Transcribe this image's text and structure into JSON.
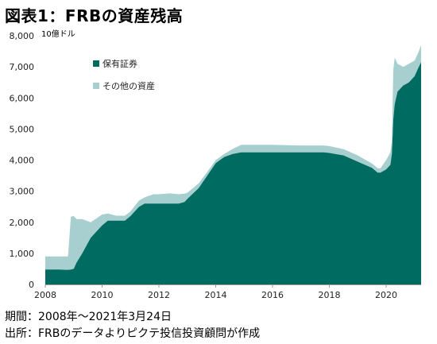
{
  "title": "図表1：FRBの資産残高",
  "footer": {
    "period": "期間：2008年～2021年3月24日",
    "source": "出所：FRBのデータよりピクテ投信投資顧問が作成"
  },
  "chart_data": {
    "type": "area",
    "stacked": true,
    "unit_label": "10億ドル",
    "x": [
      2008.0,
      2008.5,
      2008.7,
      2008.8,
      2008.9,
      2009.0,
      2009.1,
      2009.3,
      2009.6,
      2010.0,
      2010.2,
      2010.5,
      2010.8,
      2011.0,
      2011.3,
      2011.5,
      2011.8,
      2012.0,
      2012.4,
      2012.7,
      2012.9,
      2013.0,
      2013.4,
      2013.7,
      2014.0,
      2014.3,
      2014.6,
      2014.9,
      2015.0,
      2016.0,
      2017.0,
      2017.5,
      2017.8,
      2018.0,
      2018.5,
      2019.0,
      2019.5,
      2019.7,
      2019.8,
      2020.0,
      2020.15,
      2020.2,
      2020.25,
      2020.3,
      2020.4,
      2020.6,
      2020.8,
      2021.0,
      2021.15,
      2021.23
    ],
    "series": [
      {
        "name": "保有証券",
        "color": "#006b60",
        "values": [
          480,
          480,
          470,
          470,
          480,
          500,
          700,
          1000,
          1500,
          1900,
          2050,
          2050,
          2050,
          2200,
          2500,
          2600,
          2600,
          2600,
          2600,
          2600,
          2650,
          2750,
          3100,
          3500,
          3900,
          4100,
          4200,
          4250,
          4250,
          4250,
          4250,
          4250,
          4250,
          4230,
          4150,
          3950,
          3750,
          3600,
          3600,
          3700,
          3850,
          4200,
          5300,
          5800,
          6200,
          6400,
          6500,
          6700,
          7000,
          7150
        ]
      },
      {
        "name": "その他の資産",
        "color": "#a8cfcf",
        "values": [
          420,
          420,
          430,
          430,
          1700,
          1700,
          1400,
          1100,
          500,
          350,
          230,
          160,
          160,
          150,
          200,
          200,
          300,
          300,
          330,
          300,
          270,
          200,
          150,
          120,
          100,
          100,
          160,
          240,
          240,
          240,
          220,
          220,
          220,
          220,
          200,
          200,
          140,
          140,
          140,
          300,
          400,
          400,
          1600,
          1500,
          900,
          600,
          600,
          500,
          500,
          550
        ]
      }
    ],
    "xlim": [
      2008,
      2021.23
    ],
    "ylim": [
      0,
      8000
    ],
    "yticks": [
      0,
      1000,
      2000,
      3000,
      4000,
      5000,
      6000,
      7000,
      8000
    ],
    "ytick_labels": [
      "0",
      "1,000",
      "2,000",
      "3,000",
      "4,000",
      "5,000",
      "6,000",
      "7,000",
      "8,000"
    ],
    "xticks": [
      2008,
      2010,
      2012,
      2014,
      2016,
      2018,
      2020
    ],
    "xtick_labels": [
      "2008",
      "2010",
      "2012",
      "2014",
      "2016",
      "2018",
      "2020"
    ],
    "legend": "top-left",
    "grid": false
  }
}
